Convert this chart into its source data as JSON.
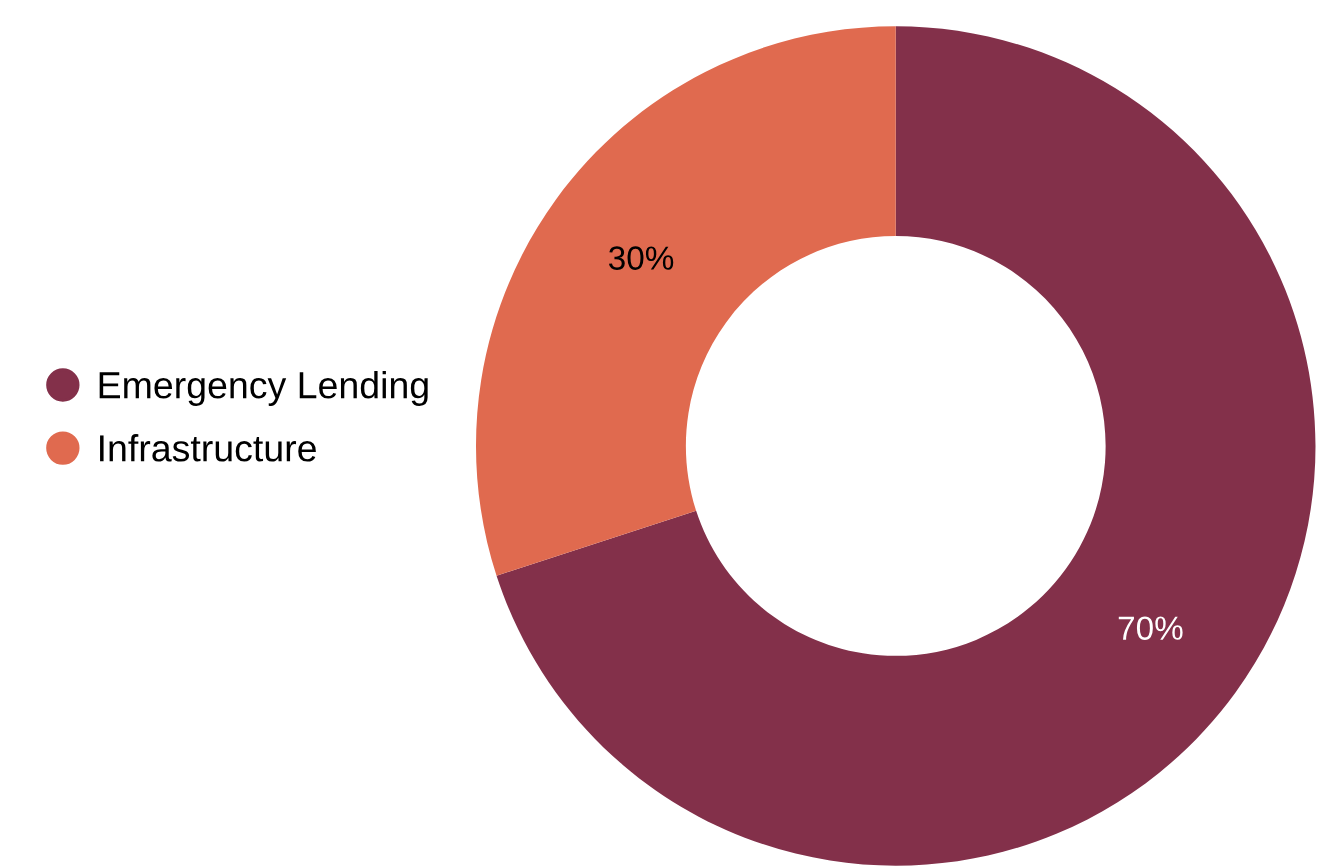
{
  "chart_data": {
    "type": "donut",
    "categories": [
      "Emergency Lending",
      "Infrastructure"
    ],
    "values": [
      70,
      30
    ],
    "colors": [
      "#83304a",
      "#e06a4f"
    ],
    "value_labels": [
      "70%",
      "30%"
    ],
    "legend": "left"
  }
}
